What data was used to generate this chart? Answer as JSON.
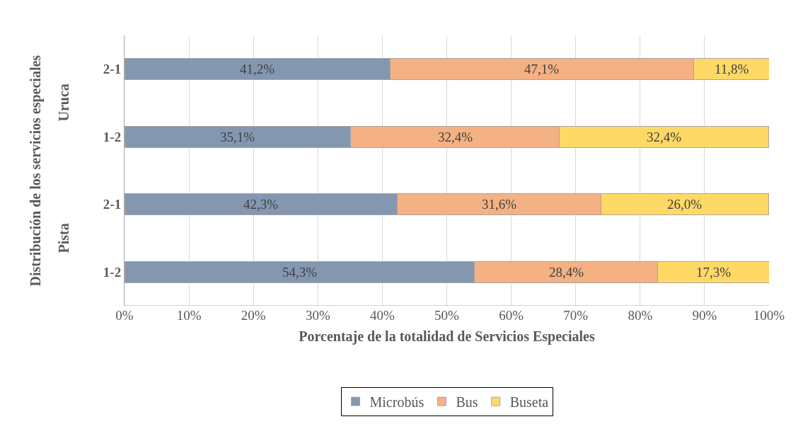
{
  "chart_data": {
    "type": "bar",
    "orientation": "horizontal",
    "stacked": true,
    "xlabel": "Porcentaje de la totalidad de Servicios Especiales",
    "ylabel": "Distribución de los servicios especiales",
    "categories": [
      "2-1",
      "1-2",
      "2-1",
      "1-2"
    ],
    "annotations": [
      "Uruca",
      "Pista"
    ],
    "series": [
      {
        "name": "Microbús",
        "color": "#8497b0",
        "values": [
          41.2,
          35.1,
          42.3,
          54.3
        ],
        "value_labels": [
          "41,2%",
          "35,1%",
          "42,3%",
          "54,3%"
        ]
      },
      {
        "name": "Bus",
        "color": "#f4b183",
        "values": [
          47.1,
          32.4,
          31.6,
          28.4
        ],
        "value_labels": [
          "47,1%",
          "32,4%",
          "31,6%",
          "28,4%"
        ]
      },
      {
        "name": "Buseta",
        "color": "#ffd966",
        "values": [
          11.8,
          32.4,
          26.0,
          17.3
        ],
        "value_labels": [
          "11,8%",
          "32,4%",
          "26,0%",
          "17,3%"
        ]
      }
    ],
    "xlim": [
      0,
      100
    ],
    "xticks": [
      {
        "value": 0,
        "label": "0%"
      },
      {
        "value": 10,
        "label": "10%"
      },
      {
        "value": 20,
        "label": "20%"
      },
      {
        "value": 30,
        "label": "30%"
      },
      {
        "value": 40,
        "label": "40%"
      },
      {
        "value": 50,
        "label": "50%"
      },
      {
        "value": 60,
        "label": "60%"
      },
      {
        "value": 70,
        "label": "70%"
      },
      {
        "value": 80,
        "label": "80%"
      },
      {
        "value": 90,
        "label": "90%"
      },
      {
        "value": 100,
        "label": "100%"
      }
    ],
    "grid": "x",
    "legend": "bottom"
  }
}
